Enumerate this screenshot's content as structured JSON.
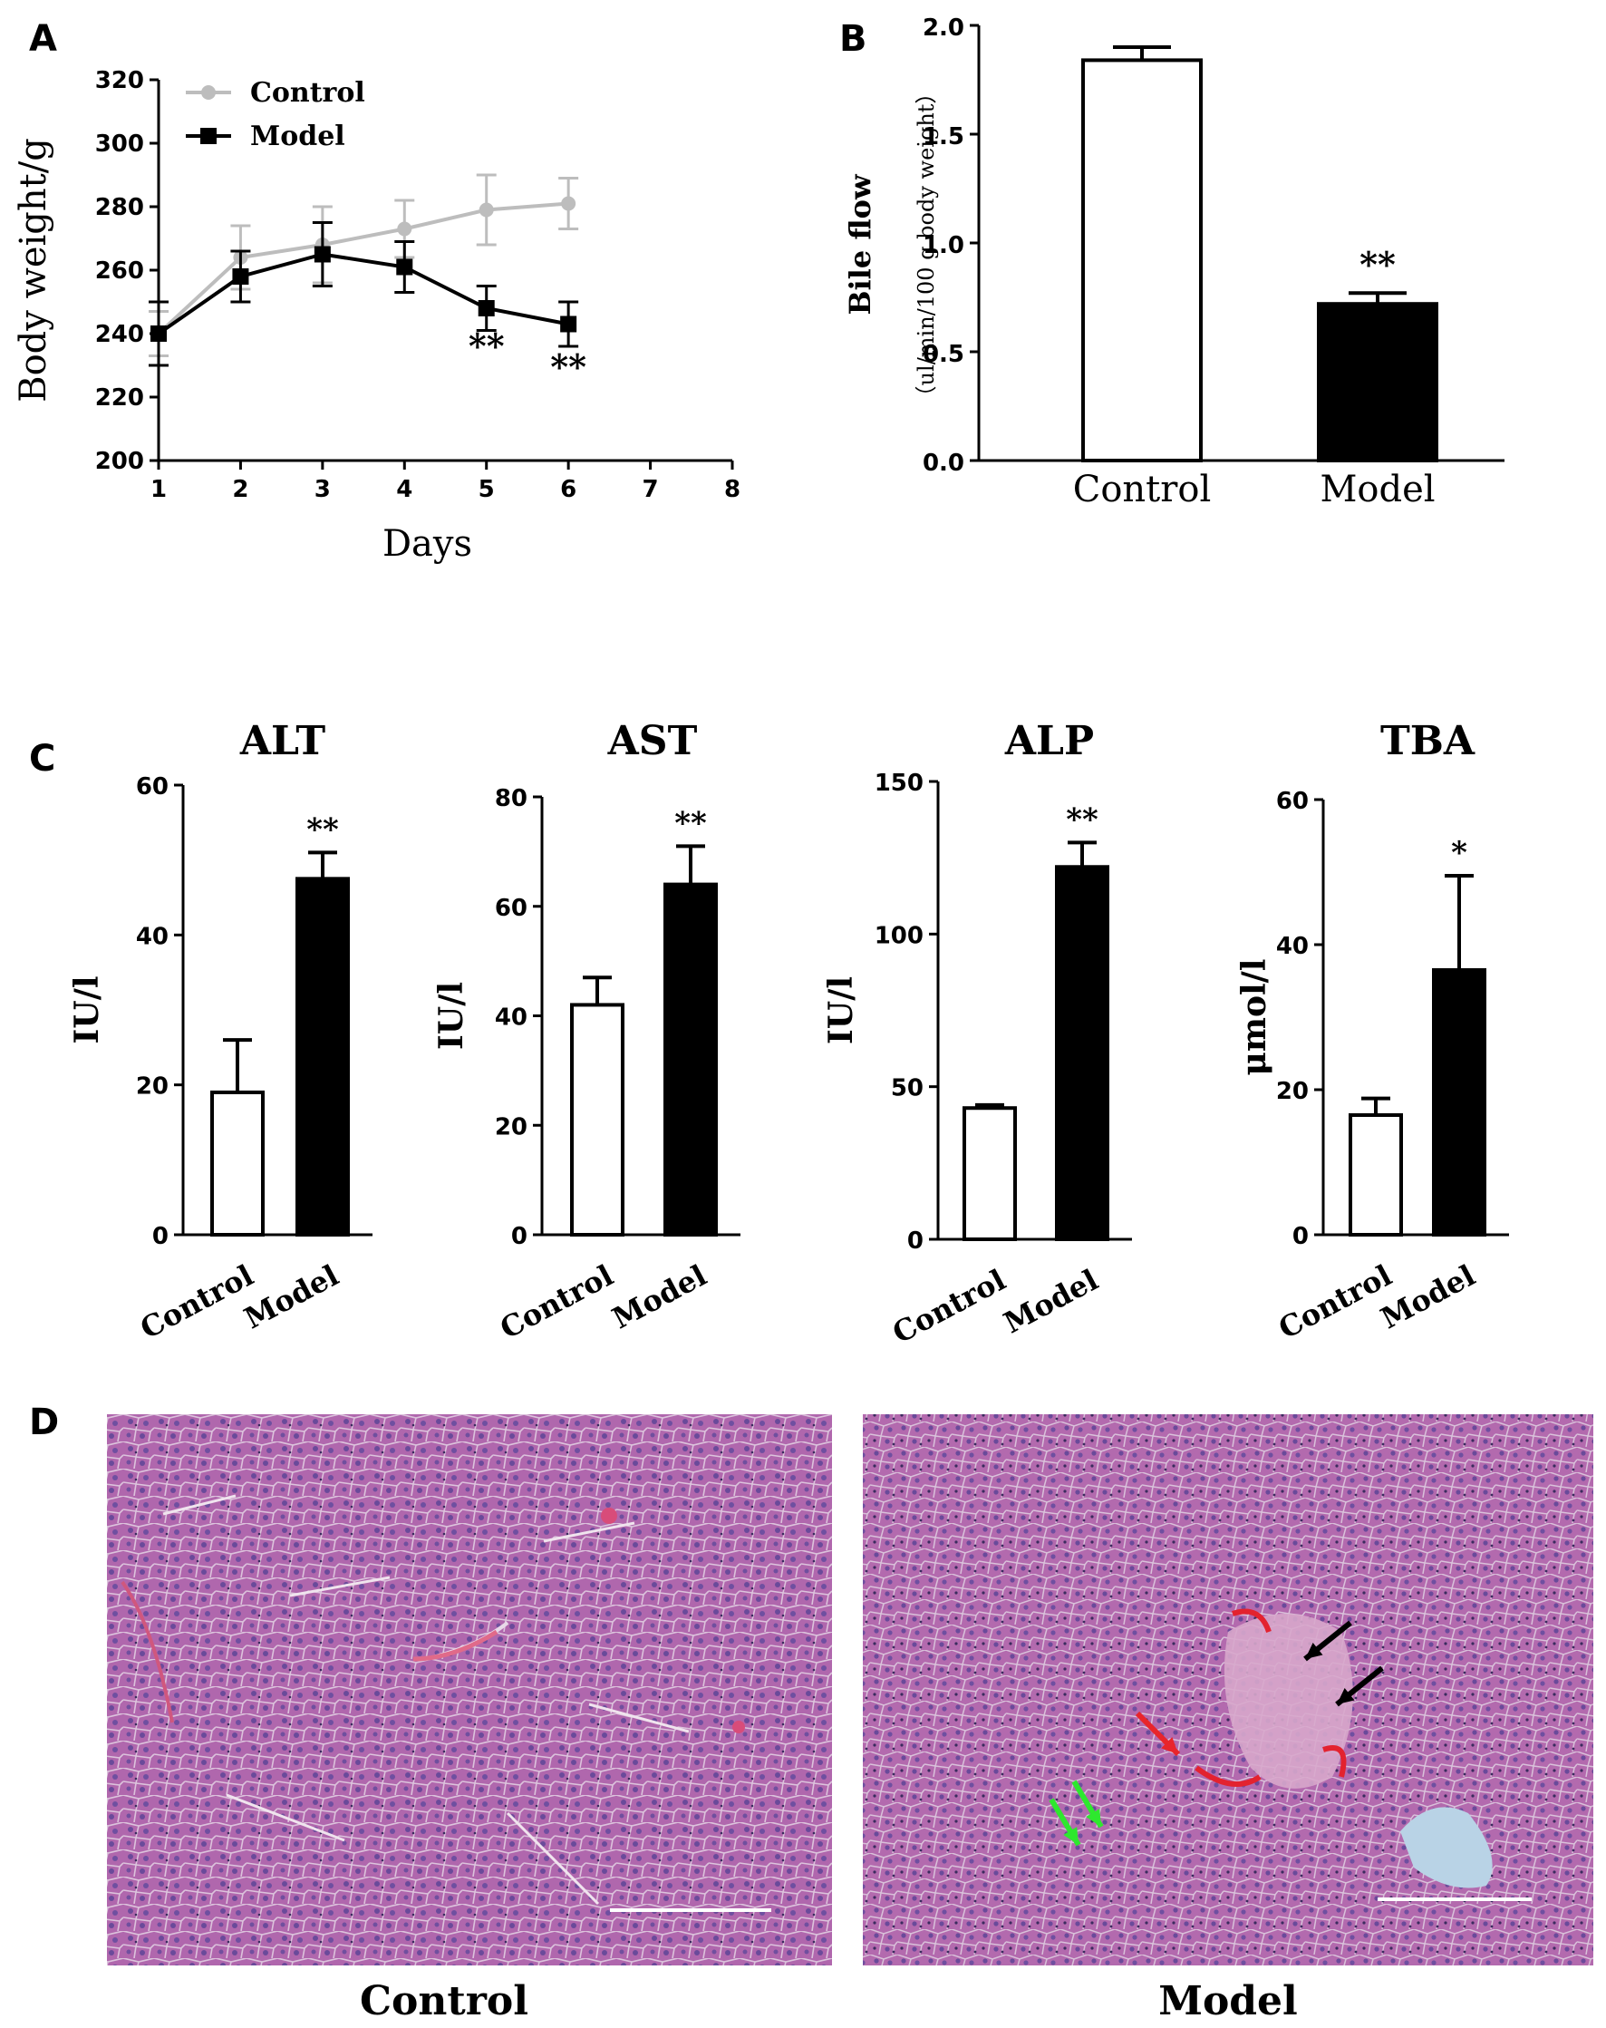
{
  "panels": {
    "A": "A",
    "B": "B",
    "C": "C",
    "D": "D"
  },
  "chart_data": [
    {
      "id": "A",
      "type": "line",
      "xlabel": "Days",
      "ylabel": "Body weight/g",
      "xlim": [
        1,
        8
      ],
      "ylim": [
        200,
        320
      ],
      "xticks": [
        "1",
        "2",
        "3",
        "4",
        "5",
        "6",
        "7",
        "8"
      ],
      "yticks": [
        "200",
        "220",
        "240",
        "260",
        "280",
        "300",
        "320"
      ],
      "legend_placement": "top-left",
      "series": [
        {
          "name": "Control",
          "color": "#bdbdbd",
          "marker": "circle",
          "x": [
            1,
            2,
            3,
            4,
            5,
            6
          ],
          "y": [
            240,
            264,
            268,
            273,
            279,
            281
          ],
          "err": [
            7,
            10,
            12,
            9,
            11,
            8
          ]
        },
        {
          "name": "Model",
          "color": "#000000",
          "marker": "square",
          "x": [
            1,
            2,
            3,
            4,
            5,
            6
          ],
          "y": [
            240,
            258,
            265,
            261,
            248,
            243
          ],
          "err": [
            10,
            8,
            10,
            8,
            7,
            7
          ]
        }
      ],
      "annotations": [
        {
          "x": 5,
          "text": "**"
        },
        {
          "x": 6,
          "text": "**"
        }
      ]
    },
    {
      "id": "B",
      "type": "bar",
      "ylabel": "Bile flow",
      "ylabel2": "（ul/min/100 g  body weight）",
      "ylim": [
        0,
        2
      ],
      "yticks": [
        "0.0",
        "0.5",
        "1.0",
        "1.5",
        "2.0"
      ],
      "categories": [
        "Control",
        "Model"
      ],
      "values": [
        1.84,
        0.72
      ],
      "err": [
        0.06,
        0.05
      ],
      "fills": [
        "#ffffff",
        "#000000"
      ],
      "annotations": [
        "",
        "**"
      ]
    },
    {
      "id": "ALT",
      "type": "bar",
      "title": "ALT",
      "ylabel": "IU/l",
      "ylim": [
        0,
        60
      ],
      "yticks": [
        "0",
        "20",
        "40",
        "60"
      ],
      "categories": [
        "Control",
        "Model"
      ],
      "values": [
        19,
        47.5
      ],
      "err": [
        7,
        3.5
      ],
      "fills": [
        "#ffffff",
        "#000000"
      ],
      "annotations": [
        "",
        "**"
      ]
    },
    {
      "id": "AST",
      "type": "bar",
      "title": "AST",
      "ylabel": "IU/l",
      "ylim": [
        0,
        80
      ],
      "yticks": [
        "0",
        "20",
        "40",
        "60",
        "80"
      ],
      "categories": [
        "Control",
        "Model"
      ],
      "values": [
        42,
        64
      ],
      "err": [
        5,
        7
      ],
      "fills": [
        "#ffffff",
        "#000000"
      ],
      "annotations": [
        "",
        "**"
      ]
    },
    {
      "id": "ALP",
      "type": "bar",
      "title": "ALP",
      "ylabel": "IU/l",
      "ylim": [
        0,
        150
      ],
      "yticks": [
        "0",
        "50",
        "100",
        "150"
      ],
      "categories": [
        "Control",
        "Model"
      ],
      "values": [
        43,
        122
      ],
      "err": [
        1,
        8
      ],
      "fills": [
        "#ffffff",
        "#000000"
      ],
      "annotations": [
        "",
        "**"
      ]
    },
    {
      "id": "TBA",
      "type": "bar",
      "title": "TBA",
      "ylabel": "μmol/l",
      "ylim": [
        0,
        60
      ],
      "yticks": [
        "0",
        "20",
        "40",
        "60"
      ],
      "categories": [
        "Control",
        "Model"
      ],
      "values": [
        16.5,
        36.5
      ],
      "err": [
        2.3,
        13
      ],
      "fills": [
        "#ffffff",
        "#000000"
      ],
      "annotations": [
        "",
        "*"
      ]
    }
  ],
  "micrographs": {
    "left_caption": "Control",
    "right_caption": "Model",
    "arrow_colors": {
      "red": "#e8252b",
      "black": "#000000",
      "green": "#2ee82e"
    }
  }
}
